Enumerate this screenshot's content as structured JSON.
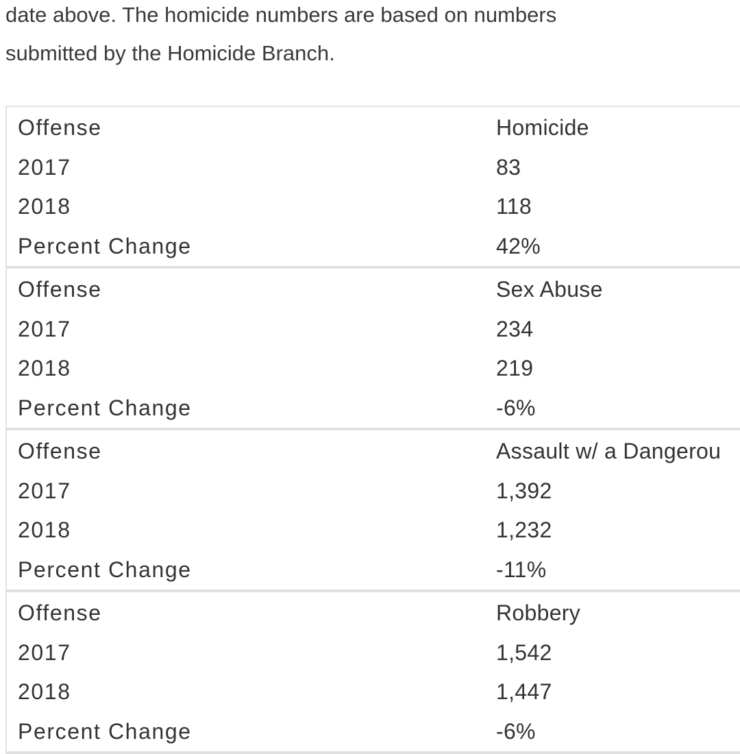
{
  "intro": {
    "lines": [
      "date above. The homicide numbers are based on numbers",
      "submitted by the Homicide Branch."
    ]
  },
  "table": {
    "groups": [
      {
        "rows": [
          [
            "Offense",
            "Homicide"
          ],
          [
            "2017",
            "83"
          ],
          [
            "2018",
            "118"
          ],
          [
            "Percent Change",
            "42%"
          ]
        ]
      },
      {
        "rows": [
          [
            "Offense",
            "Sex Abuse"
          ],
          [
            "2017",
            "234"
          ],
          [
            "2018",
            "219"
          ],
          [
            "Percent Change",
            "-6%"
          ]
        ]
      },
      {
        "rows": [
          [
            "Offense",
            "Assault w/ a Dangerou"
          ],
          [
            "2017",
            "1,392"
          ],
          [
            "2018",
            "1,232"
          ],
          [
            "Percent Change",
            "-11%"
          ]
        ]
      },
      {
        "rows": [
          [
            "Offense",
            "Robbery"
          ],
          [
            "2017",
            "1,542"
          ],
          [
            "2018",
            "1,447"
          ],
          [
            "Percent Change",
            "-6%"
          ]
        ]
      }
    ]
  }
}
